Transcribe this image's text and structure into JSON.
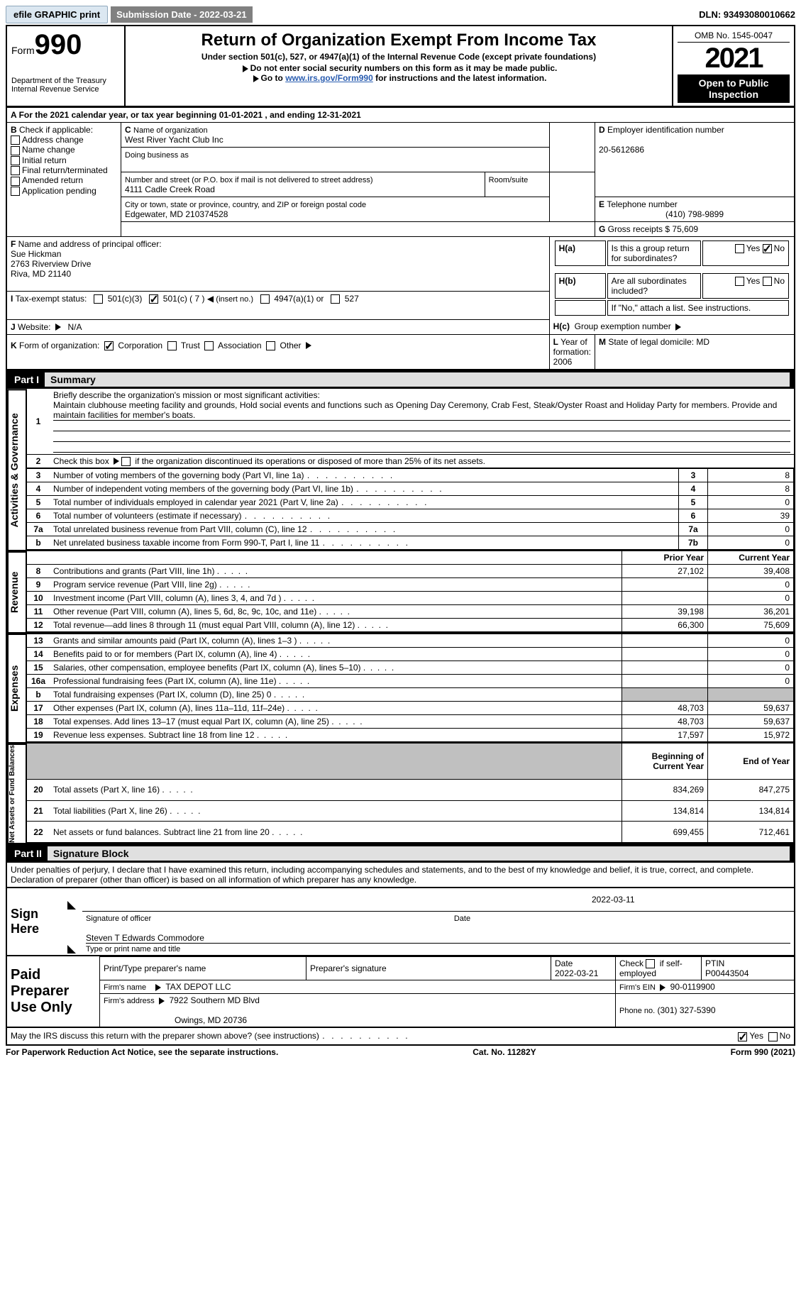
{
  "topbar": {
    "efile": "efile GRAPHIC print",
    "submission": "Submission Date - 2022-03-21",
    "dln": "DLN: 93493080010662"
  },
  "header": {
    "form": "Form",
    "formno": "990",
    "title": "Return of Organization Exempt From Income Tax",
    "subtitle": "Under section 501(c), 527, or 4947(a)(1) of the Internal Revenue Code (except private foundations)",
    "note1": "Do not enter social security numbers on this form as it may be made public.",
    "note2_pre": "Go to ",
    "note2_link": "www.irs.gov/Form990",
    "note2_post": " for instructions and the latest information.",
    "dept": "Department of the Treasury",
    "irs": "Internal Revenue Service",
    "omb": "OMB No. 1545-0047",
    "year": "2021",
    "inspection": "Open to Public Inspection"
  },
  "A": {
    "text_pre": "For the 2021 calendar year, or tax year beginning ",
    "begin": "01-01-2021",
    "mid": " , and ending ",
    "end": "12-31-2021"
  },
  "B": {
    "label": "Check if applicable:",
    "items": [
      "Address change",
      "Name change",
      "Initial return",
      "Final return/terminated",
      "Amended return",
      "Application pending"
    ]
  },
  "C": {
    "label_name": "Name of organization",
    "name": "West River Yacht Club Inc",
    "dba_label": "Doing business as",
    "dba": "",
    "addr_label": "Number and street (or P.O. box if mail is not delivered to street address)",
    "room_label": "Room/suite",
    "addr": "4111 Cadle Creek Road",
    "city_label": "City or town, state or province, country, and ZIP or foreign postal code",
    "city": "Edgewater, MD  210374528"
  },
  "D": {
    "label": "Employer identification number",
    "value": "20-5612686"
  },
  "E": {
    "label": "Telephone number",
    "value": "(410) 798-9899"
  },
  "G": {
    "label": "Gross receipts $",
    "value": "75,609"
  },
  "F": {
    "label": "Name and address of principal officer:",
    "name": "Sue Hickman",
    "addr1": "2763 Riverview Drive",
    "addr2": "Riva, MD  21140"
  },
  "H": {
    "a": "Is this a group return for subordinates?",
    "b": "Are all subordinates included?",
    "note": "If \"No,\" attach a list. See instructions.",
    "c": "Group exemption number"
  },
  "I": {
    "label": "Tax-exempt status:",
    "insert": "( 7 )",
    "paren_note": "(insert no.)"
  },
  "J": {
    "label": "Website:",
    "value": "N/A"
  },
  "K": {
    "label": "Form of organization:",
    "other": "Other"
  },
  "L": {
    "label": "Year of formation:",
    "value": "2006"
  },
  "M": {
    "label": "State of legal domicile:",
    "value": "MD"
  },
  "part1": {
    "num": "Part I",
    "title": "Summary",
    "q1": "Briefly describe the organization's mission or most significant activities:",
    "mission": "Maintain clubhouse meeting facility and grounds, Hold social events and functions such as Opening Day Ceremony, Crab Fest, Steak/Oyster Roast and Holiday Party for members. Provide and maintain facilities for member's boats.",
    "q2": "Check this box  if the organization discontinued its operations or disposed of more than 25% of its net assets.",
    "rows": [
      {
        "n": "3",
        "d": "Number of voting members of the governing body (Part VI, line 1a)",
        "box": "3",
        "v": "8"
      },
      {
        "n": "4",
        "d": "Number of independent voting members of the governing body (Part VI, line 1b)",
        "box": "4",
        "v": "8"
      },
      {
        "n": "5",
        "d": "Total number of individuals employed in calendar year 2021 (Part V, line 2a)",
        "box": "5",
        "v": "0"
      },
      {
        "n": "6",
        "d": "Total number of volunteers (estimate if necessary)",
        "box": "6",
        "v": "39"
      },
      {
        "n": "7a",
        "d": "Total unrelated business revenue from Part VIII, column (C), line 12",
        "box": "7a",
        "v": "0"
      },
      {
        "n": "b",
        "d": "Net unrelated business taxable income from Form 990-T, Part I, line 11",
        "box": "7b",
        "v": "0"
      }
    ],
    "col_prior": "Prior Year",
    "col_current": "Current Year",
    "revenue": [
      {
        "n": "8",
        "d": "Contributions and grants (Part VIII, line 1h)",
        "p": "27,102",
        "c": "39,408"
      },
      {
        "n": "9",
        "d": "Program service revenue (Part VIII, line 2g)",
        "p": "",
        "c": "0"
      },
      {
        "n": "10",
        "d": "Investment income (Part VIII, column (A), lines 3, 4, and 7d )",
        "p": "",
        "c": "0"
      },
      {
        "n": "11",
        "d": "Other revenue (Part VIII, column (A), lines 5, 6d, 8c, 9c, 10c, and 11e)",
        "p": "39,198",
        "c": "36,201"
      },
      {
        "n": "12",
        "d": "Total revenue—add lines 8 through 11 (must equal Part VIII, column (A), line 12)",
        "p": "66,300",
        "c": "75,609"
      }
    ],
    "expenses": [
      {
        "n": "13",
        "d": "Grants and similar amounts paid (Part IX, column (A), lines 1–3 )",
        "p": "",
        "c": "0"
      },
      {
        "n": "14",
        "d": "Benefits paid to or for members (Part IX, column (A), line 4)",
        "p": "",
        "c": "0"
      },
      {
        "n": "15",
        "d": "Salaries, other compensation, employee benefits (Part IX, column (A), lines 5–10)",
        "p": "",
        "c": "0"
      },
      {
        "n": "16a",
        "d": "Professional fundraising fees (Part IX, column (A), line 11e)",
        "p": "",
        "c": "0"
      },
      {
        "n": "b",
        "d": "Total fundraising expenses (Part IX, column (D), line 25)  0",
        "p": "shade",
        "c": "shade"
      },
      {
        "n": "17",
        "d": "Other expenses (Part IX, column (A), lines 11a–11d, 11f–24e)",
        "p": "48,703",
        "c": "59,637"
      },
      {
        "n": "18",
        "d": "Total expenses. Add lines 13–17 (must equal Part IX, column (A), line 25)",
        "p": "48,703",
        "c": "59,637"
      },
      {
        "n": "19",
        "d": "Revenue less expenses. Subtract line 18 from line 12",
        "p": "17,597",
        "c": "15,972"
      }
    ],
    "col_begin": "Beginning of Current Year",
    "col_end": "End of Year",
    "net": [
      {
        "n": "20",
        "d": "Total assets (Part X, line 16)",
        "p": "834,269",
        "c": "847,275"
      },
      {
        "n": "21",
        "d": "Total liabilities (Part X, line 26)",
        "p": "134,814",
        "c": "134,814"
      },
      {
        "n": "22",
        "d": "Net assets or fund balances. Subtract line 21 from line 20",
        "p": "699,455",
        "c": "712,461"
      }
    ],
    "side_ag": "Activities & Governance",
    "side_rev": "Revenue",
    "side_exp": "Expenses",
    "side_net": "Net Assets or Fund Balances"
  },
  "part2": {
    "num": "Part II",
    "title": "Signature Block",
    "decl": "Under penalties of perjury, I declare that I have examined this return, including accompanying schedules and statements, and to the best of my knowledge and belief, it is true, correct, and complete. Declaration of preparer (other than officer) is based on all information of which preparer has any knowledge.",
    "signhere": "Sign Here",
    "sigoff": "Signature of officer",
    "date": "Date",
    "sigdate": "2022-03-11",
    "typed": "Steven T Edwards Commodore",
    "typed_label": "Type or print name and title",
    "paid": "Paid Preparer Use Only",
    "pp_name": "Print/Type preparer's name",
    "pp_sig": "Preparer's signature",
    "pp_date": "Date",
    "pp_dateval": "2022-03-21",
    "pp_check": "Check          if self-employed",
    "pp_ptin": "PTIN",
    "pp_ptinval": "P00443504",
    "firm_name": "Firm's name",
    "firm_nameval": "TAX DEPOT LLC",
    "firm_ein": "Firm's EIN",
    "firm_einval": "90-0119900",
    "firm_addr": "Firm's address",
    "firm_addrval": "7922 Southern MD Blvd",
    "firm_addr2": "Owings, MD  20736",
    "phone": "Phone no.",
    "phoneval": "(301) 327-5390",
    "discuss": "May the IRS discuss this return with the preparer shown above? (see instructions)"
  },
  "footer": {
    "pra": "For Paperwork Reduction Act Notice, see the separate instructions.",
    "cat": "Cat. No. 11282Y",
    "form": "Form 990 (2021)"
  },
  "labels": {
    "yes": "Yes",
    "no": "No",
    "c501c3": "501(c)(3)",
    "c501c": "501(c)",
    "c4947": "4947(a)(1) or",
    "c527": "527",
    "corp": "Corporation",
    "trust": "Trust",
    "assoc": "Association"
  }
}
